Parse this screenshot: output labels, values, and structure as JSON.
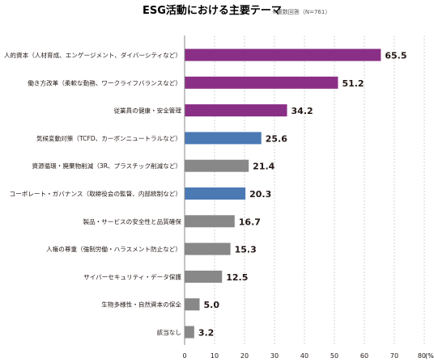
{
  "chart_data": {
    "type": "bar",
    "orientation": "horizontal",
    "title": "ESG活動における主要テーマ",
    "note": "※複数回答（N=761）",
    "unit": "(%)",
    "xlim": [
      0,
      80
    ],
    "xticks": [
      0,
      10,
      20,
      30,
      40,
      50,
      60,
      70,
      80
    ],
    "grid": true,
    "categories": [
      "人的資本（人材育成、エンゲージメント、ダイバーシティなど）",
      "働き方改革（柔軟な勤務、ワークライフバランスなど）",
      "従業員の健康・安全管理",
      "気候変動対策（TCFD、カーボンニュートラルなど）",
      "資源循環・廃棄物削減（3R、プラスチック削減など）",
      "コーポレート・ガバナンス（取締役会の監督、内部統制など）",
      "製品・サービスの安全性と品質確保",
      "人権の尊重（強制労働・ハラスメント防止など）",
      "サイバーセキュリティ・データ保護",
      "生物多様性・自然資本の保全",
      "該当なし"
    ],
    "values": [
      65.5,
      51.2,
      34.2,
      25.6,
      21.4,
      20.3,
      16.7,
      15.3,
      12.5,
      5.0,
      3.2
    ],
    "value_labels": [
      "65.5",
      "51.2",
      "34.2",
      "25.6",
      "21.4",
      "20.3",
      "16.7",
      "15.3",
      "12.5",
      "5.0",
      "3.2"
    ],
    "bar_colors": [
      "#8a2f86",
      "#8a2f86",
      "#8a2f86",
      "#4b79b4",
      "#888888",
      "#4b79b4",
      "#888888",
      "#888888",
      "#888888",
      "#888888",
      "#888888"
    ]
  }
}
